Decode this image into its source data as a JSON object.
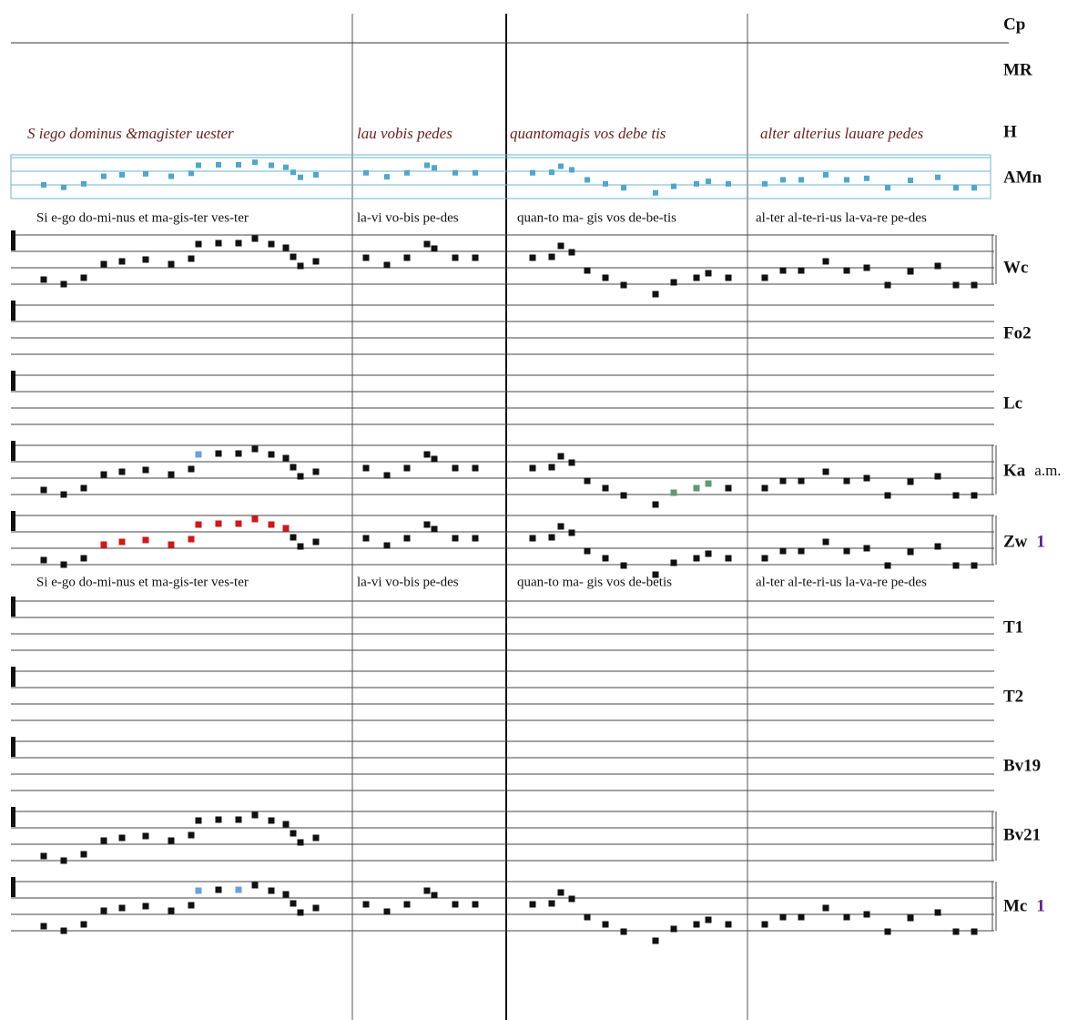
{
  "staves": [
    {
      "label": "Cp"
    },
    {
      "label": "MR"
    },
    {
      "label": "H"
    },
    {
      "label": "AMn"
    },
    {
      "label": "Wc"
    },
    {
      "label": "Fo2"
    },
    {
      "label": "Lc"
    },
    {
      "label": "Ka",
      "note": "a.m."
    },
    {
      "label": "Zw",
      "note": "1"
    },
    {
      "label": "T1"
    },
    {
      "label": "T2"
    },
    {
      "label": "Bv19"
    },
    {
      "label": "Bv21"
    },
    {
      "label": "Mc",
      "note": "1"
    }
  ],
  "manuscript": [
    "S iego dominus &magister uester",
    "lau vobis pedes",
    "quantomagis vos debe tis",
    "alter alterius lauare pedes"
  ],
  "lyrics": [
    [
      "Si e-go  do-mi-nus et ma-gis-ter ves-ter",
      "la-vi  vo-bis pe-des",
      "quan-to  ma- gis   vos de-be-tis",
      "al-ter al-te-ri-us la-va-re pe-des"
    ],
    [
      "Si e-go  do-mi-nus et ma-gis-ter ves-ter",
      "la-vi  vo-bis pe-des",
      "quan-to  ma- gis   vos de-betis",
      "al-ter al-te-ri-us   la-va-re pe-des"
    ]
  ]
}
